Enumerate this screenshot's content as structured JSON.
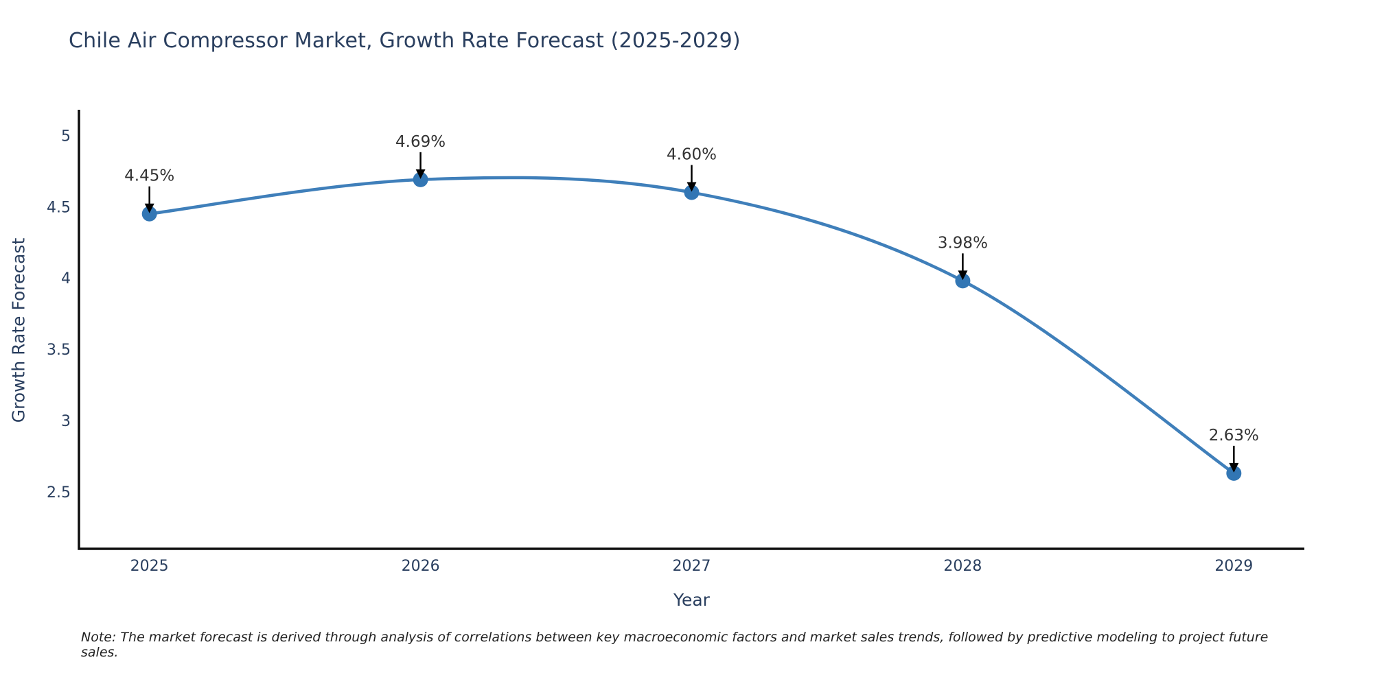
{
  "page": {
    "background": "#ffffff"
  },
  "note": {
    "text": "Note: The market forecast is derived through analysis of correlations between key macroeconomic factors and market sales trends, followed by predictive modeling to project future sales."
  },
  "chart_data": {
    "type": "line",
    "title": "Chile Air Compressor Market, Growth Rate Forecast (2025-2029)",
    "xlabel": "Year",
    "ylabel": "Growth Rate Forecast",
    "series": [
      {
        "name": "Growth Rate Forecast",
        "x": [
          2025,
          2026,
          2027,
          2028,
          2029
        ],
        "values": [
          4.45,
          4.69,
          4.6,
          3.98,
          2.63
        ],
        "point_labels": [
          "4.45%",
          "4.69%",
          "4.60%",
          "3.98%",
          "2.63%"
        ]
      }
    ],
    "x_tick_labels": [
      "2025",
      "2026",
      "2027",
      "2028",
      "2029"
    ],
    "x_tick_values": [
      2025,
      2026,
      2027,
      2028,
      2029
    ],
    "y_tick_labels": [
      "5",
      "4.5",
      "4",
      "3.5",
      "3",
      "2.5"
    ],
    "y_tick_values": [
      5,
      4.5,
      4,
      3.5,
      3,
      2.5
    ],
    "xlim": [
      2024.74,
      2029.26
    ],
    "ylim": [
      2.1,
      5.18
    ],
    "grid": false,
    "legend": "none",
    "line_shape": "spline",
    "colors": {
      "line": "#3f7fba",
      "marker": "#3276b4",
      "axis": "#0d0d0d",
      "title_text": "#2a3f5f",
      "tick_text": "#2a3f5f",
      "annotation_text": "#333333",
      "arrow": "#000000",
      "background": "#ffffff"
    }
  }
}
